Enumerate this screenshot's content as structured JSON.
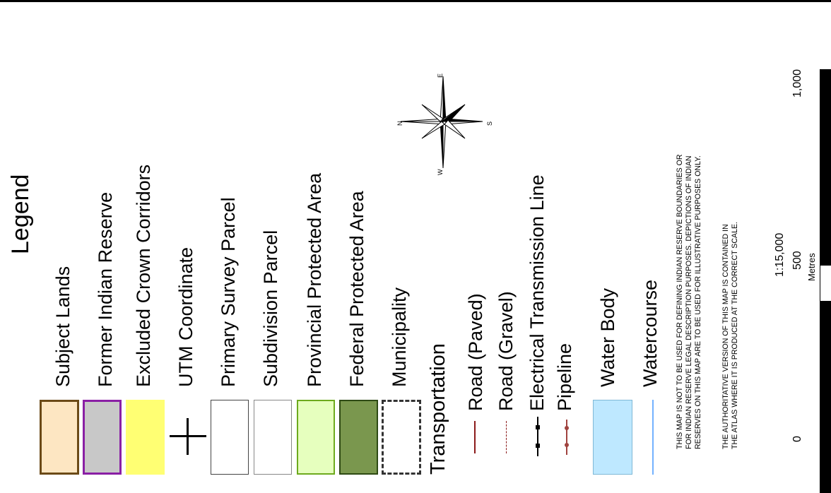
{
  "legend": {
    "title": "Legend",
    "items": [
      {
        "label": "Subject Lands",
        "fill": "#FDE6C2",
        "stroke": "#6B4A17"
      },
      {
        "label": "Former Indian Reserve",
        "fill": "#C8C8C8",
        "stroke": "#8A1FA5"
      },
      {
        "label": "Excluded Crown Corridors",
        "fill": "#FFFF73",
        "stroke": "none"
      },
      {
        "label": "UTM Coordinate",
        "symbol": "plus-icon"
      },
      {
        "label": "Primary Survey Parcel",
        "fill": "#FFFFFF",
        "stroke": "#444444"
      },
      {
        "label": "Subdivision Parcel",
        "fill": "#FFFFFF",
        "stroke": "#888888"
      },
      {
        "label": "Provincial Protected Area",
        "fill": "#E6FFBE",
        "stroke": "#6DAA1D"
      },
      {
        "label": "Federal Protected Area",
        "fill": "#7A974E",
        "stroke": "#2E4A14"
      },
      {
        "label": "Municipality",
        "fill": "#FFFFFF",
        "stroke": "#333333",
        "dash": true
      }
    ],
    "transport_heading": "Transportation",
    "transport": [
      {
        "label": "Road (Paved)",
        "color": "#8B1A1A",
        "style": "solid"
      },
      {
        "label": "Road (Gravel)",
        "color": "#8B1A1A",
        "style": "dashed"
      },
      {
        "label": "Electrical Transmission Line",
        "color": "#000000",
        "style": "dotted-line"
      },
      {
        "label": "Pipeline",
        "color": "#A0433F",
        "style": "dot-line"
      }
    ],
    "water": [
      {
        "label": "Water Body",
        "fill": "#BEE8FF",
        "stroke": "#7FB8D6"
      },
      {
        "label": "Watercourse",
        "color": "#73B2FF"
      }
    ]
  },
  "compass": {
    "n": "N",
    "s": "S",
    "e": "E",
    "w": "W"
  },
  "notice": {
    "line1": "THIS MAP IS NOT TO BE USED FOR DEFINING INDIAN RESERVE BOUNDARIES OR",
    "line2": "FOR INDIAN RESERVE LEGAL DESCRIPTION PURPOSES.  DEPICTIONS OF INDIAN",
    "line3": "RESERVES ON THIS MAP ARE TO BE USED FOR ILLUSTRATIVE PURPOSES ONLY.",
    "line4": "THE AUTHORITATIVE VERSION OF THIS MAP IS CONTAINED IN",
    "line5": "THE ATLAS WHERE IT IS PRODUCED AT THE CORRECT SCALE."
  },
  "scale": {
    "ratio": "1:15,000",
    "tick0": "0",
    "tick500": "500",
    "tick1000": "1,000",
    "unit": "Metres"
  }
}
